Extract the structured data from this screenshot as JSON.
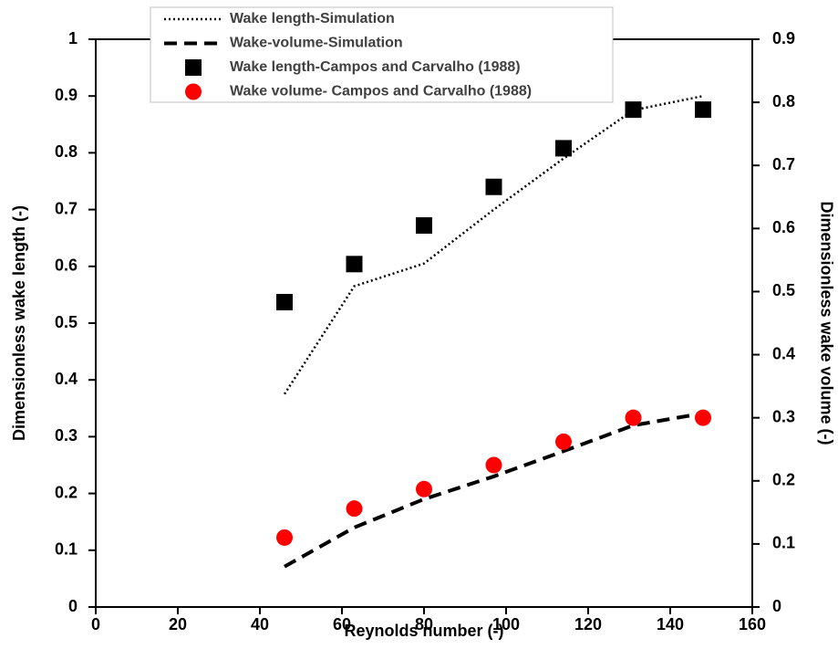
{
  "chart_data": {
    "type": "line",
    "x_label": "Reynolds number (-)",
    "y_label": "Dimensionless wake length (-)",
    "y2_label": "Dimensionless wake volume (-)",
    "x": [
      46,
      63,
      80,
      97,
      114,
      131,
      148
    ],
    "xlim": [
      0,
      160
    ],
    "xticks": [
      0,
      20,
      40,
      60,
      80,
      100,
      120,
      140,
      160
    ],
    "ylim": [
      0,
      1
    ],
    "yticks": [
      0,
      0.1,
      0.2,
      0.3,
      0.4,
      0.5,
      0.6,
      0.7,
      0.8,
      0.9,
      1
    ],
    "y2lim": [
      0,
      0.9
    ],
    "y2ticks": [
      0,
      0.1,
      0.2,
      0.3,
      0.4,
      0.5,
      0.6,
      0.7,
      0.8,
      0.9
    ],
    "series": [
      {
        "name": "Wake length-Simulation",
        "type": "line",
        "style": "dotted",
        "color": "#000000",
        "values": [
          0.375,
          0.565,
          0.605,
          0.7,
          0.79,
          0.875,
          0.9
        ]
      },
      {
        "name": "Wake-volume-Simulation",
        "type": "line",
        "style": "dashed",
        "color": "#000000",
        "axis": "y2",
        "values": [
          0.064,
          0.126,
          0.171,
          0.207,
          0.247,
          0.288,
          0.307
        ]
      },
      {
        "name": " Wake length-Campos and Carvalho (1988)",
        "type": "scatter",
        "marker": "square",
        "color": "#000000",
        "values": [
          0.537,
          0.604,
          0.672,
          0.74,
          0.808,
          0.876,
          0.876
        ]
      },
      {
        "name": "Wake volume- Campos and Carvalho (1988)",
        "type": "scatter",
        "marker": "circle",
        "color": "#ff0000",
        "axis": "y2",
        "values": [
          0.11,
          0.156,
          0.187,
          0.225,
          0.262,
          0.3,
          0.3
        ]
      }
    ]
  }
}
